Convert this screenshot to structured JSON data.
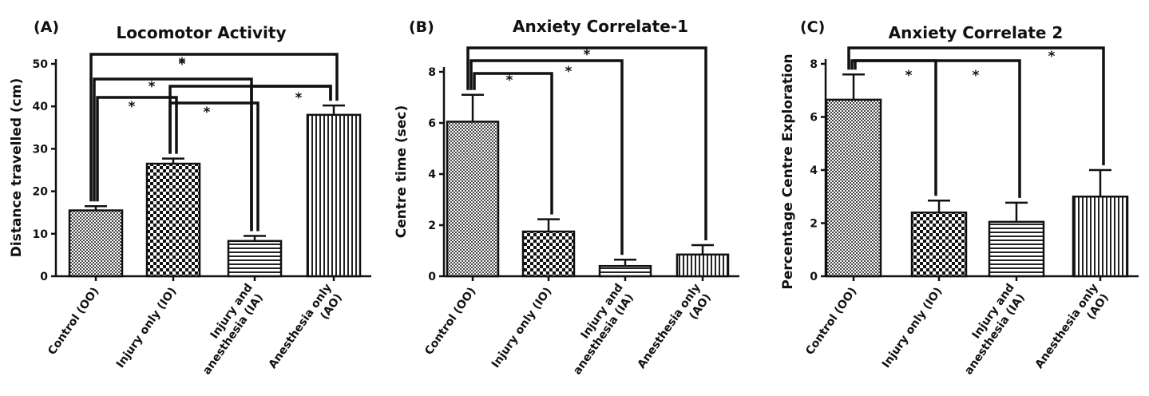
{
  "chart_data": [
    {
      "type": "bar",
      "panel": "(A)",
      "title": "Locomotor Activity",
      "ylabel": "Distance travelled (cm)",
      "ylim": [
        0,
        50
      ],
      "yticks": [
        0,
        10,
        20,
        30,
        40,
        50
      ],
      "categories": [
        "Control (OO)",
        "Injury only (IO)",
        "Injury and anesthesia (IA)",
        "Anesthesia only (AO)"
      ],
      "category_lines": [
        [
          "Control (OO)"
        ],
        [
          "Injury only (IO)"
        ],
        [
          "Injury and",
          "anesthesia (IA)"
        ],
        [
          "Anesthesia only",
          "(AO)"
        ]
      ],
      "values": [
        15.5,
        26.5,
        8.3,
        38.0
      ],
      "errors": [
        1.0,
        1.2,
        1.2,
        2.2
      ],
      "patterns": [
        "crosshatch",
        "checker",
        "hlines",
        "vlines"
      ],
      "comparisons": [
        {
          "from": 0,
          "to": 3,
          "label": "*"
        },
        {
          "from": 0,
          "to": 2,
          "label": "*"
        },
        {
          "from": 0,
          "to": 1,
          "label": "*"
        },
        {
          "from": 1,
          "to": 3,
          "label": "*"
        },
        {
          "from": 1,
          "to": 2,
          "label": "*"
        },
        {
          "from": 2,
          "to": 3,
          "label": "*"
        }
      ]
    },
    {
      "type": "bar",
      "panel": "(B)",
      "title": "Anxiety Correlate-1",
      "ylabel": "Centre time (sec)",
      "ylim": [
        0,
        8
      ],
      "yticks": [
        0,
        2,
        4,
        6,
        8
      ],
      "categories": [
        "Control (OO)",
        "Injury only (IO)",
        "Injury and anesthesia (IA)",
        "Anesthesia only (AO)"
      ],
      "category_lines": [
        [
          "Control (OO)"
        ],
        [
          "Injury only (IO)"
        ],
        [
          "Injury and",
          "anesthesia (IA)"
        ],
        [
          "Anesthesia only",
          "(AO)"
        ]
      ],
      "values": [
        6.05,
        1.75,
        0.4,
        0.85
      ],
      "errors": [
        1.05,
        0.48,
        0.25,
        0.37
      ],
      "patterns": [
        "crosshatch",
        "checker",
        "hlines",
        "vlines"
      ],
      "comparisons": [
        {
          "from": 0,
          "to": 3,
          "label": "*"
        },
        {
          "from": 0,
          "to": 2,
          "label": "*"
        },
        {
          "from": 0,
          "to": 1,
          "label": "*"
        }
      ]
    },
    {
      "type": "bar",
      "panel": "(C)",
      "title": "Anxiety Correlate 2",
      "ylabel": "Percentage Centre Exploration",
      "ylim": [
        0,
        8
      ],
      "yticks": [
        0,
        2,
        4,
        6,
        8
      ],
      "categories": [
        "Control (OO)",
        "Injury only (IO)",
        "Injury and anesthesia (IA)",
        "Anesthesia only (AO)"
      ],
      "category_lines": [
        [
          "Control (OO)"
        ],
        [
          "Injury only (IO)"
        ],
        [
          "Injury and",
          "anesthesia (IA)"
        ],
        [
          "Anesthesia only",
          "(AO)"
        ]
      ],
      "values": [
        6.65,
        2.4,
        2.05,
        3.0
      ],
      "errors": [
        0.95,
        0.45,
        0.72,
        1.0
      ],
      "patterns": [
        "crosshatch",
        "checker",
        "hlines",
        "vlines"
      ],
      "comparisons": [
        {
          "from": 0,
          "to": 3,
          "label": "*"
        },
        {
          "from": 0,
          "to": 1,
          "label": "*"
        },
        {
          "from": 0,
          "to": 2,
          "label": "*"
        }
      ]
    }
  ]
}
